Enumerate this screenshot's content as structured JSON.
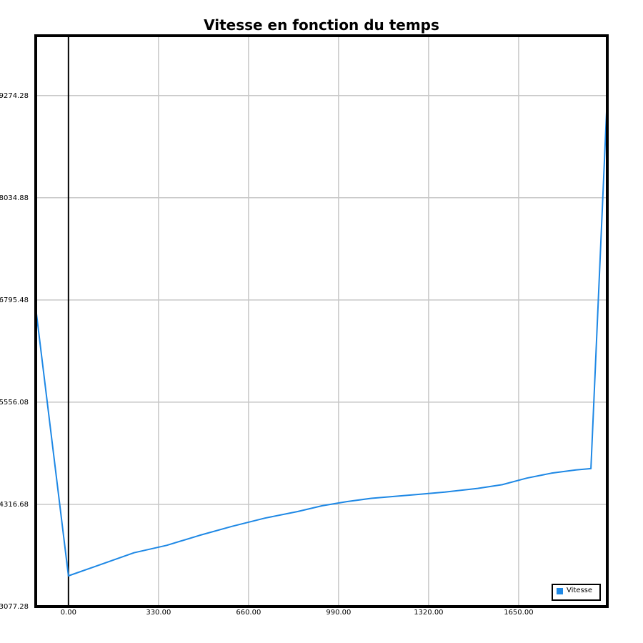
{
  "chart_data": {
    "type": "line",
    "title": "Vitesse en fonction du temps",
    "xlabel": "",
    "ylabel": "",
    "xlim": [
      -120,
      1975
    ],
    "ylim": [
      3077.28,
      10000
    ],
    "x_ticks": [
      "0.00",
      "330.00",
      "660.00",
      "990.00",
      "1320.00",
      "1650.00"
    ],
    "y_ticks": [
      "3077.28",
      "4316.68",
      "5556.08",
      "6795.48",
      "8034.88",
      "9274.28"
    ],
    "grid": true,
    "legend_position": "bottom-right",
    "series": [
      {
        "name": "Vitesse",
        "color": "#1e88e5",
        "x": [
          -120,
          0,
          240,
          360,
          480,
          600,
          720,
          840,
          930,
          1020,
          1110,
          1200,
          1290,
          1380,
          1500,
          1590,
          1680,
          1770,
          1860,
          1915,
          1975
        ],
        "y": [
          6700,
          3450,
          3730,
          3820,
          3940,
          4050,
          4150,
          4230,
          4300,
          4350,
          4390,
          4415,
          4440,
          4465,
          4510,
          4555,
          4635,
          4695,
          4735,
          4750,
          9274
        ]
      }
    ]
  }
}
